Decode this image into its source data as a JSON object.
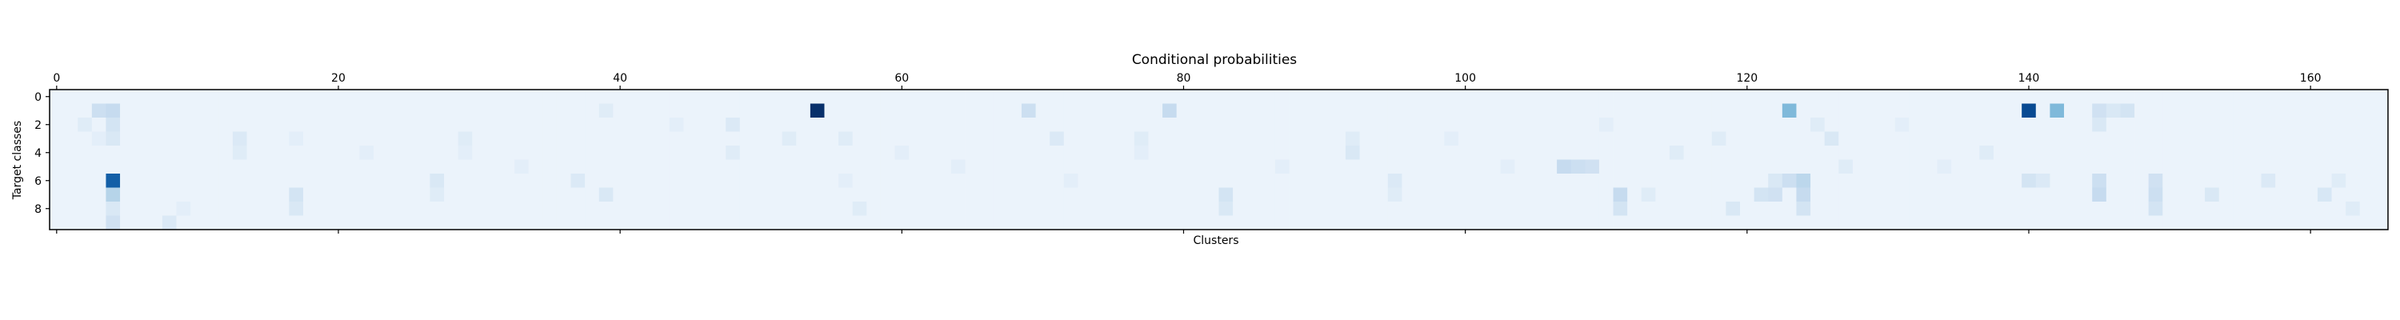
{
  "chart_data": {
    "type": "heatmap",
    "title": "Conditional probabilities",
    "xlabel": "Clusters",
    "ylabel": "Target classes",
    "n_cols": 166,
    "n_rows": 10,
    "x_ticks": [
      0,
      20,
      40,
      60,
      80,
      100,
      120,
      140,
      160
    ],
    "y_ticks": [
      0,
      2,
      4,
      6,
      8
    ],
    "colormap": "Blues",
    "vmin": 0,
    "vmax": 1,
    "x_tick_labels_position": "top",
    "grid": false,
    "background_level": 0.06,
    "cells": [
      [
        54,
        1,
        1.0
      ],
      [
        4,
        6,
        0.82
      ],
      [
        140,
        1,
        0.9
      ],
      [
        142,
        1,
        0.45
      ],
      [
        123,
        1,
        0.45
      ],
      [
        69,
        1,
        0.22
      ],
      [
        79,
        1,
        0.25
      ],
      [
        3,
        1,
        0.22
      ],
      [
        4,
        1,
        0.25
      ],
      [
        4,
        2,
        0.18
      ],
      [
        4,
        3,
        0.15
      ],
      [
        4,
        7,
        0.3
      ],
      [
        4,
        8,
        0.15
      ],
      [
        4,
        9,
        0.2
      ],
      [
        2,
        2,
        0.12
      ],
      [
        3,
        3,
        0.1
      ],
      [
        13,
        3,
        0.14
      ],
      [
        13,
        4,
        0.12
      ],
      [
        17,
        7,
        0.18
      ],
      [
        17,
        8,
        0.15
      ],
      [
        17,
        3,
        0.1
      ],
      [
        27,
        6,
        0.15
      ],
      [
        27,
        7,
        0.12
      ],
      [
        29,
        3,
        0.12
      ],
      [
        29,
        4,
        0.1
      ],
      [
        37,
        6,
        0.14
      ],
      [
        39,
        7,
        0.15
      ],
      [
        39,
        1,
        0.12
      ],
      [
        48,
        2,
        0.14
      ],
      [
        48,
        4,
        0.12
      ],
      [
        56,
        3,
        0.12
      ],
      [
        56,
        6,
        0.1
      ],
      [
        57,
        8,
        0.12
      ],
      [
        64,
        5,
        0.1
      ],
      [
        71,
        3,
        0.14
      ],
      [
        72,
        6,
        0.1
      ],
      [
        77,
        3,
        0.12
      ],
      [
        77,
        4,
        0.1
      ],
      [
        83,
        7,
        0.18
      ],
      [
        83,
        8,
        0.15
      ],
      [
        92,
        3,
        0.12
      ],
      [
        92,
        4,
        0.15
      ],
      [
        95,
        6,
        0.14
      ],
      [
        95,
        7,
        0.12
      ],
      [
        103,
        5,
        0.1
      ],
      [
        107,
        5,
        0.25
      ],
      [
        108,
        5,
        0.22
      ],
      [
        109,
        5,
        0.2
      ],
      [
        110,
        2,
        0.1
      ],
      [
        111,
        7,
        0.25
      ],
      [
        111,
        8,
        0.18
      ],
      [
        113,
        7,
        0.12
      ],
      [
        118,
        3,
        0.12
      ],
      [
        119,
        8,
        0.15
      ],
      [
        121,
        7,
        0.18
      ],
      [
        122,
        6,
        0.15
      ],
      [
        122,
        7,
        0.2
      ],
      [
        123,
        6,
        0.22
      ],
      [
        124,
        6,
        0.28
      ],
      [
        124,
        7,
        0.25
      ],
      [
        124,
        8,
        0.18
      ],
      [
        125,
        2,
        0.12
      ],
      [
        126,
        3,
        0.15
      ],
      [
        127,
        5,
        0.12
      ],
      [
        134,
        5,
        0.1
      ],
      [
        140,
        6,
        0.18
      ],
      [
        141,
        6,
        0.14
      ],
      [
        145,
        1,
        0.2
      ],
      [
        145,
        2,
        0.15
      ],
      [
        146,
        1,
        0.15
      ],
      [
        147,
        1,
        0.18
      ],
      [
        145,
        6,
        0.22
      ],
      [
        145,
        7,
        0.25
      ],
      [
        149,
        6,
        0.2
      ],
      [
        149,
        7,
        0.22
      ],
      [
        149,
        8,
        0.18
      ],
      [
        153,
        7,
        0.15
      ],
      [
        157,
        6,
        0.14
      ],
      [
        161,
        7,
        0.16
      ],
      [
        162,
        6,
        0.12
      ],
      [
        163,
        8,
        0.12
      ],
      [
        8,
        9,
        0.14
      ],
      [
        9,
        8,
        0.1
      ],
      [
        22,
        4,
        0.1
      ],
      [
        33,
        5,
        0.1
      ],
      [
        44,
        2,
        0.1
      ],
      [
        52,
        3,
        0.12
      ],
      [
        60,
        4,
        0.1
      ],
      [
        87,
        5,
        0.1
      ],
      [
        99,
        3,
        0.1
      ],
      [
        115,
        4,
        0.12
      ],
      [
        131,
        2,
        0.1
      ],
      [
        137,
        4,
        0.12
      ]
    ]
  }
}
